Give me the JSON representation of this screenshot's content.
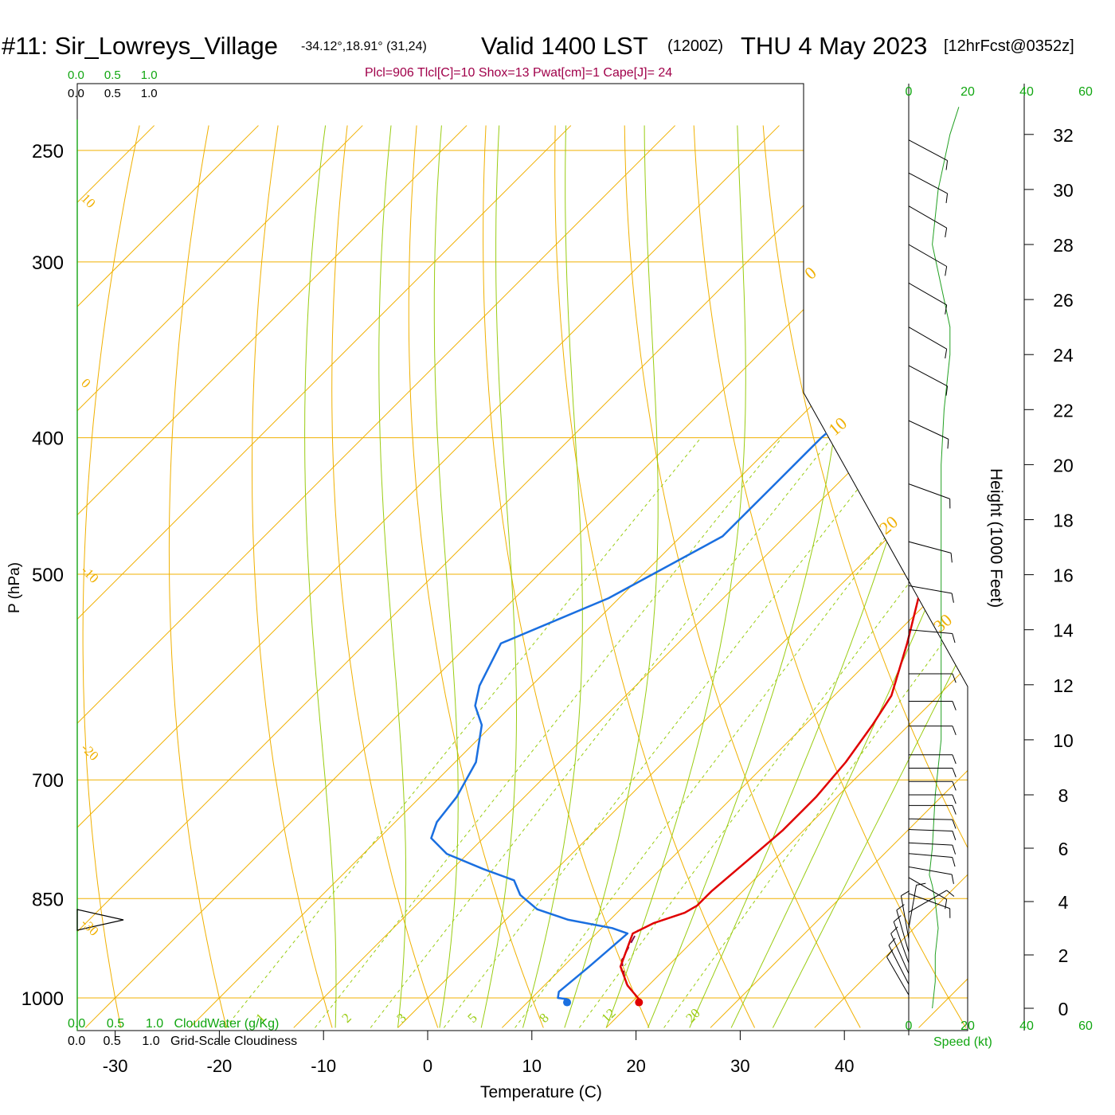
{
  "header": {
    "station": "#11: Sir_Lowreys_Village",
    "coords": "-34.12°,18.91° (31,24)",
    "valid": "Valid 1400 LST",
    "zulu": "(1200Z)",
    "date": "THU 4 May 2023",
    "forecast": "[12hrFcst@0352z]",
    "indices": "Plcl=906 Tlcl[C]=10 Shox=13 Pwat[cm]=1 Cape[J]= 24"
  },
  "colors": {
    "temperature": "#e00000",
    "dewpoint": "#1a6fe0",
    "isotherm": "#f0b000",
    "dry_adiabat": "#f0b000",
    "moist_adiabat": "#99cc11",
    "mixing_ratio": "#99cc11",
    "parcel": "#800040",
    "wind_speed": "#22a022",
    "label_green": "#11a611",
    "index_text": "#a0004a"
  },
  "chart_data": {
    "type": "line",
    "subtype": "skew-t log-p sounding",
    "xlabel": "Temperature (C)",
    "ylabel": "P (hPa)",
    "right_label": "Height (1000 Feet)",
    "x_ticks": [
      -30,
      -20,
      -10,
      0,
      10,
      20,
      30,
      40
    ],
    "y_ticks": [
      250,
      300,
      400,
      500,
      700,
      850,
      1000
    ],
    "height_ticks": [
      0,
      2,
      4,
      6,
      8,
      10,
      12,
      14,
      16,
      18,
      20,
      22,
      24,
      26,
      28,
      30,
      32
    ],
    "cloud_scale_ticks": [
      "0.0",
      "0.5",
      "1.0"
    ],
    "cloud_water_label": "CloudWater (g/Kg)",
    "cloudiness_label": "Grid-Scale Cloudiness",
    "wind_speed_ticks": [
      0,
      20,
      40,
      60
    ],
    "wind_speed_label": "Speed (kt)",
    "isotherm_labels": [
      10,
      0,
      -10,
      -20,
      -30
    ],
    "dry_adiabat_labels": [
      0,
      10,
      20,
      30
    ],
    "mixing_ratio_labels": [
      1,
      2,
      3,
      5,
      8,
      12,
      20
    ],
    "series": [
      {
        "name": "Temperature",
        "points": [
          [
            20.4,
            1002
          ],
          [
            18,
            980
          ],
          [
            15.5,
            950
          ],
          [
            13.5,
            900
          ],
          [
            14.5,
            885
          ],
          [
            16.5,
            870
          ],
          [
            17,
            860
          ],
          [
            17,
            840
          ],
          [
            17.5,
            800
          ],
          [
            18,
            760
          ],
          [
            18,
            720
          ],
          [
            17.5,
            680
          ],
          [
            16.5,
            640
          ],
          [
            15.5,
            610
          ],
          [
            12,
            560
          ],
          [
            7,
            500
          ],
          [
            3,
            450
          ],
          [
            0.5,
            400
          ],
          [
            -2,
            370
          ],
          [
            -4.5,
            330
          ],
          [
            -7,
            300
          ],
          [
            -9.5,
            275
          ],
          [
            -12,
            258
          ]
        ]
      },
      {
        "name": "Dewpoint",
        "points": [
          [
            13.5,
            1002
          ],
          [
            12.5,
            1000
          ],
          [
            12,
            990
          ],
          [
            12.5,
            950
          ],
          [
            13,
            900
          ],
          [
            11,
            892
          ],
          [
            6,
            880
          ],
          [
            2,
            865
          ],
          [
            -1,
            845
          ],
          [
            -3,
            825
          ],
          [
            -7,
            810
          ],
          [
            -12,
            790
          ],
          [
            -15,
            770
          ],
          [
            -16,
            750
          ],
          [
            -16.5,
            720
          ],
          [
            -18,
            680
          ],
          [
            -21,
            640
          ],
          [
            -23.5,
            620
          ],
          [
            -25,
            600
          ],
          [
            -27,
            560
          ],
          [
            -21,
            520
          ],
          [
            -16,
            470
          ],
          [
            -16,
            430
          ],
          [
            -16,
            400
          ],
          [
            -15.5,
            380
          ],
          [
            -11,
            360
          ],
          [
            -7,
            340
          ],
          [
            -7.5,
            320
          ],
          [
            -9,
            300
          ],
          [
            -10,
            280
          ],
          [
            -10,
            260
          ]
        ]
      },
      {
        "name": "Parcel",
        "points": [
          [
            20.4,
            1002
          ],
          [
            17.5,
            975
          ],
          [
            15,
            940
          ],
          [
            14,
            906
          ],
          [
            13.7,
            895
          ]
        ]
      }
    ],
    "surface_temperature": 20.4,
    "surface_dewpoint": 13.5,
    "wind_barbs": [
      {
        "h": 0.5,
        "dir": 330,
        "spd": 7
      },
      {
        "h": 0.9,
        "dir": 333,
        "spd": 8
      },
      {
        "h": 1.3,
        "dir": 336,
        "spd": 8
      },
      {
        "h": 1.7,
        "dir": 340,
        "spd": 8
      },
      {
        "h": 2.1,
        "dir": 344,
        "spd": 7
      },
      {
        "h": 2.6,
        "dir": 350,
        "spd": 6
      },
      {
        "h": 3.0,
        "dir": 10,
        "spd": 4
      },
      {
        "h": 3.6,
        "dir": 60,
        "spd": 5
      },
      {
        "h": 4.3,
        "dir": 110,
        "spd": 6
      },
      {
        "h": 4.9,
        "dir": 120,
        "spd": 8
      },
      {
        "h": 5.3,
        "dir": 100,
        "spd": 9
      },
      {
        "h": 5.8,
        "dir": 95,
        "spd": 10
      },
      {
        "h": 6.2,
        "dir": 93,
        "spd": 10
      },
      {
        "h": 6.7,
        "dir": 92,
        "spd": 10
      },
      {
        "h": 7.1,
        "dir": 91,
        "spd": 10
      },
      {
        "h": 7.6,
        "dir": 90,
        "spd": 10
      },
      {
        "h": 8.0,
        "dir": 90,
        "spd": 10
      },
      {
        "h": 8.5,
        "dir": 90,
        "spd": 10
      },
      {
        "h": 9.0,
        "dir": 90,
        "spd": 10
      },
      {
        "h": 9.5,
        "dir": 90,
        "spd": 10
      },
      {
        "h": 10.5,
        "dir": 90,
        "spd": 10
      },
      {
        "h": 11.4,
        "dir": 90,
        "spd": 10
      },
      {
        "h": 12.4,
        "dir": 90,
        "spd": 10
      },
      {
        "h": 14.0,
        "dir": 95,
        "spd": 10
      },
      {
        "h": 15.6,
        "dir": 100,
        "spd": 10
      },
      {
        "h": 17.2,
        "dir": 105,
        "spd": 10
      },
      {
        "h": 19.3,
        "dir": 110,
        "spd": 10
      },
      {
        "h": 21.6,
        "dir": 115,
        "spd": 10
      },
      {
        "h": 23.6,
        "dir": 118,
        "spd": 10
      },
      {
        "h": 25.0,
        "dir": 120,
        "spd": 10
      },
      {
        "h": 26.6,
        "dir": 120,
        "spd": 10
      },
      {
        "h": 28.0,
        "dir": 120,
        "spd": 10
      },
      {
        "h": 29.4,
        "dir": 120,
        "spd": 10
      },
      {
        "h": 30.6,
        "dir": 118,
        "spd": 10
      },
      {
        "h": 31.8,
        "dir": 118,
        "spd": 10
      }
    ],
    "wind_speed_profile": [
      [
        0,
        8
      ],
      [
        1,
        9
      ],
      [
        2,
        9
      ],
      [
        3,
        10
      ],
      [
        4,
        9
      ],
      [
        4.6,
        8
      ],
      [
        5,
        7
      ],
      [
        6,
        8
      ],
      [
        8,
        9
      ],
      [
        10,
        11
      ],
      [
        12,
        11
      ],
      [
        14,
        11
      ],
      [
        16,
        11
      ],
      [
        18,
        11
      ],
      [
        20,
        11
      ],
      [
        22,
        12
      ],
      [
        24,
        14
      ],
      [
        25,
        14
      ],
      [
        26,
        12
      ],
      [
        28,
        8
      ],
      [
        30,
        10
      ],
      [
        32,
        14
      ],
      [
        33,
        17
      ]
    ]
  }
}
